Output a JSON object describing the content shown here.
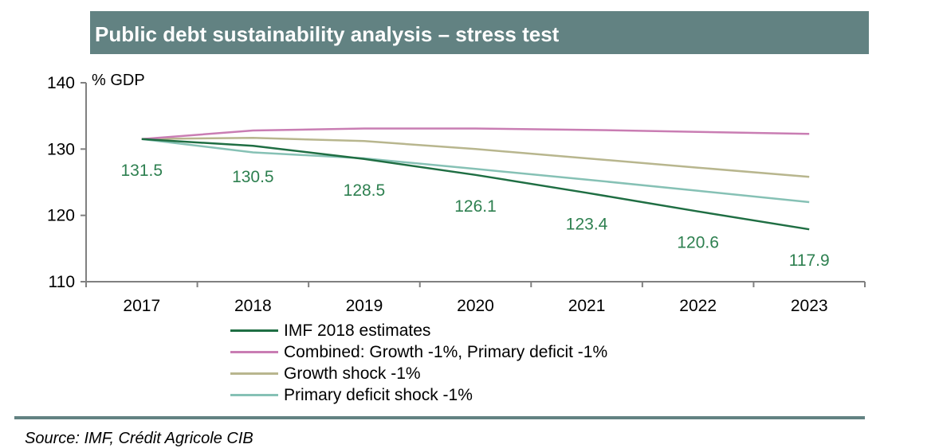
{
  "source": "Source: IMF, Crédit Agricole CIB",
  "chart_data": {
    "type": "line",
    "title": "Public debt sustainability analysis – stress test",
    "ylabel": "% GDP",
    "xlabel": "",
    "ylim": [
      110,
      140
    ],
    "yticks": [
      110,
      120,
      130,
      140
    ],
    "categories": [
      "2017",
      "2018",
      "2019",
      "2020",
      "2021",
      "2022",
      "2023"
    ],
    "series": [
      {
        "name": "IMF 2018 estimates",
        "color": "#1f6e43",
        "values": [
          131.5,
          130.5,
          128.5,
          126.1,
          123.4,
          120.6,
          117.9
        ],
        "data_labels": [
          "131.5",
          "130.5",
          "128.5",
          "126.1",
          "123.4",
          "120.6",
          "117.9"
        ]
      },
      {
        "name": "Combined: Growth -1%, Primary deficit -1%",
        "color": "#c97db3",
        "values": [
          131.5,
          132.8,
          133.1,
          133.1,
          132.9,
          132.6,
          132.3
        ]
      },
      {
        "name": "Growth shock -1%",
        "color": "#b8b68e",
        "values": [
          131.5,
          131.7,
          131.2,
          130.0,
          128.6,
          127.2,
          125.8
        ]
      },
      {
        "name": "Primary deficit shock -1%",
        "color": "#86c1b5",
        "values": [
          131.5,
          129.5,
          128.6,
          127.0,
          125.4,
          123.7,
          122.0
        ]
      }
    ],
    "data_label_color": "#2e8050",
    "legend_position": "bottom",
    "grid": false
  }
}
